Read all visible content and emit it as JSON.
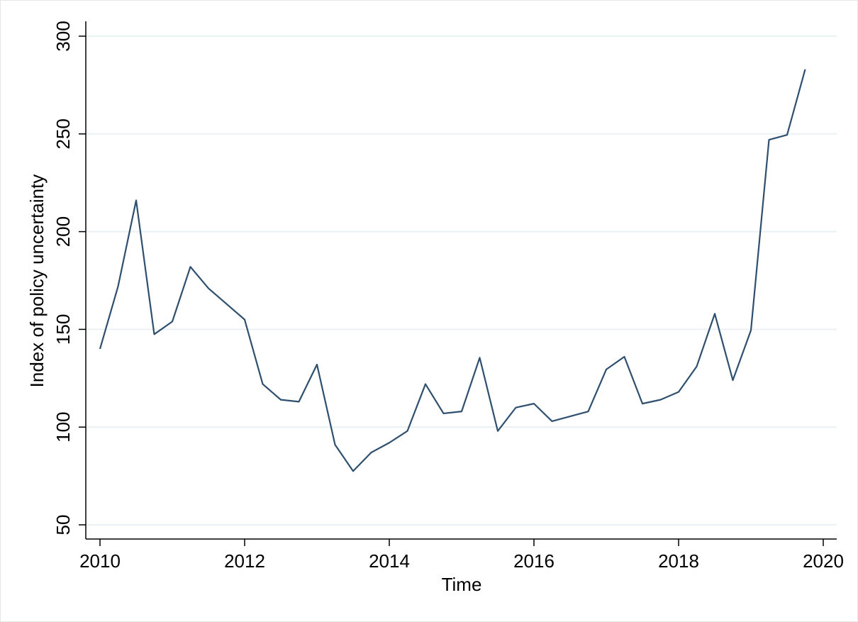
{
  "chart_data": {
    "type": "line",
    "x_label": "Time",
    "y_label": "Index of policy uncertainty",
    "x": [
      2010,
      2010.25,
      2010.5,
      2010.75,
      2011,
      2011.25,
      2011.5,
      2011.75,
      2012,
      2012.25,
      2012.5,
      2012.75,
      2013,
      2013.25,
      2013.5,
      2013.75,
      2014,
      2014.25,
      2014.5,
      2014.75,
      2015,
      2015.25,
      2015.5,
      2015.75,
      2016,
      2016.25,
      2016.5,
      2016.75,
      2017,
      2017.25,
      2017.5,
      2017.75,
      2018,
      2018.25,
      2018.5,
      2018.75,
      2019,
      2019.25,
      2019.5,
      2019.75
    ],
    "series": [
      {
        "color": "#2e4f6e",
        "values": [
          140,
          172,
          216,
          147.5,
          154,
          182,
          171,
          163,
          155,
          122,
          114,
          113,
          132,
          91,
          77.5,
          87,
          92,
          98,
          122,
          107,
          108,
          135.5,
          98,
          110,
          112,
          103,
          105.5,
          108,
          129.5,
          136,
          112,
          114,
          118,
          131,
          158,
          124,
          149.5,
          247,
          249.5,
          283
        ]
      }
    ],
    "xlim": [
      2010,
      2020
    ],
    "xticks": [
      2010,
      2012,
      2014,
      2016,
      2018,
      2020
    ],
    "ylim": [
      50,
      300
    ],
    "yticks": [
      50,
      100,
      150,
      200,
      250,
      300
    ],
    "grid": true
  }
}
